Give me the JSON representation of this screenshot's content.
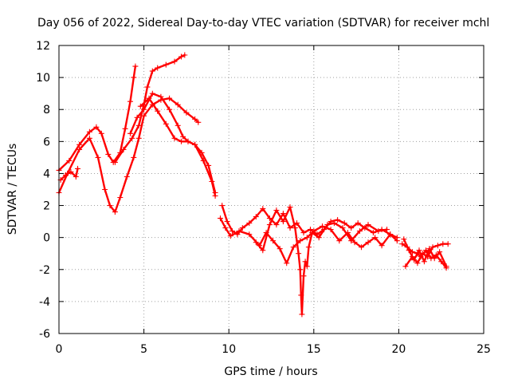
{
  "chart_data": {
    "type": "scatter",
    "title": "Day 056 of 2022, Sidereal Day-to-day VTEC variation (SDTVAR) for receiver mchl",
    "xlabel": "GPS time / hours",
    "ylabel": "SDTVAR / TECUs",
    "xlim": [
      0,
      25
    ],
    "ylim": [
      -6,
      12
    ],
    "xticks": [
      0,
      5,
      10,
      15,
      20,
      25
    ],
    "yticks": [
      -6,
      -4,
      -2,
      0,
      2,
      4,
      6,
      8,
      10,
      12
    ],
    "grid": true,
    "marker": "+",
    "color": "#ff0000",
    "series": [
      {
        "name": "track-1",
        "points": [
          [
            0.0,
            2.8
          ],
          [
            0.5,
            4.0
          ],
          [
            1.2,
            5.5
          ],
          [
            1.8,
            6.2
          ],
          [
            2.3,
            5.0
          ],
          [
            2.7,
            3.0
          ],
          [
            3.0,
            2.0
          ],
          [
            3.3,
            1.6
          ],
          [
            3.6,
            2.5
          ],
          [
            4.0,
            3.8
          ],
          [
            4.4,
            5.0
          ],
          [
            4.7,
            6.2
          ],
          [
            5.0,
            7.6
          ],
          [
            5.5,
            8.3
          ],
          [
            6.0,
            8.6
          ],
          [
            6.5,
            8.7
          ],
          [
            7.0,
            8.3
          ],
          [
            7.5,
            7.8
          ],
          [
            8.0,
            7.4
          ],
          [
            8.2,
            7.2
          ]
        ]
      },
      {
        "name": "track-2",
        "points": [
          [
            0.0,
            4.2
          ],
          [
            0.6,
            4.8
          ],
          [
            1.2,
            5.8
          ],
          [
            1.8,
            6.6
          ],
          [
            2.2,
            6.9
          ],
          [
            2.5,
            6.5
          ],
          [
            2.9,
            5.2
          ],
          [
            3.2,
            4.7
          ],
          [
            3.6,
            5.3
          ],
          [
            3.9,
            6.8
          ],
          [
            4.2,
            8.5
          ],
          [
            4.4,
            10.0
          ],
          [
            4.5,
            10.7
          ]
        ]
      },
      {
        "name": "track-3",
        "points": [
          [
            3.3,
            4.7
          ],
          [
            3.8,
            5.5
          ],
          [
            4.3,
            6.2
          ],
          [
            4.7,
            7.0
          ],
          [
            5.0,
            8.3
          ],
          [
            5.2,
            9.4
          ],
          [
            5.5,
            10.4
          ],
          [
            5.8,
            10.6
          ],
          [
            6.3,
            10.8
          ],
          [
            6.8,
            11.0
          ],
          [
            7.2,
            11.3
          ],
          [
            7.4,
            11.4
          ]
        ]
      },
      {
        "name": "track-4",
        "points": [
          [
            4.2,
            6.5
          ],
          [
            4.6,
            7.5
          ],
          [
            5.0,
            8.0
          ],
          [
            5.5,
            9.0
          ],
          [
            6.0,
            8.8
          ],
          [
            6.5,
            8.0
          ],
          [
            7.0,
            7.0
          ],
          [
            7.3,
            6.3
          ],
          [
            7.6,
            6.0
          ],
          [
            8.0,
            5.8
          ],
          [
            8.4,
            5.3
          ],
          [
            8.8,
            4.5
          ],
          [
            9.2,
            2.8
          ]
        ]
      },
      {
        "name": "track-5",
        "points": [
          [
            4.8,
            8.2
          ],
          [
            5.3,
            8.7
          ],
          [
            5.8,
            7.9
          ],
          [
            6.3,
            7.1
          ],
          [
            6.8,
            6.2
          ],
          [
            7.2,
            6.0
          ],
          [
            7.6,
            6.0
          ],
          [
            8.0,
            5.8
          ],
          [
            8.5,
            4.8
          ],
          [
            9.0,
            3.5
          ],
          [
            9.2,
            2.6
          ]
        ]
      },
      {
        "name": "track-6",
        "points": [
          [
            0.1,
            3.6
          ],
          [
            0.4,
            3.9
          ],
          [
            0.7,
            4.1
          ],
          [
            1.0,
            3.8
          ],
          [
            1.1,
            4.3
          ]
        ]
      },
      {
        "name": "track-7",
        "points": [
          [
            9.6,
            2.0
          ],
          [
            9.9,
            1.0
          ],
          [
            10.2,
            0.4
          ],
          [
            10.5,
            0.2
          ],
          [
            10.8,
            0.6
          ],
          [
            11.2,
            0.9
          ],
          [
            11.6,
            1.3
          ],
          [
            12.0,
            1.8
          ],
          [
            12.4,
            1.2
          ],
          [
            12.8,
            0.8
          ],
          [
            13.2,
            1.5
          ],
          [
            13.6,
            0.6
          ],
          [
            14.0,
            0.9
          ],
          [
            14.4,
            0.3
          ],
          [
            14.8,
            0.5
          ],
          [
            15.2,
            0.2
          ],
          [
            15.6,
            0.5
          ],
          [
            16.0,
            1.0
          ],
          [
            16.4,
            1.1
          ],
          [
            16.8,
            0.9
          ],
          [
            17.2,
            0.6
          ],
          [
            17.6,
            0.9
          ],
          [
            18.0,
            0.6
          ],
          [
            18.5,
            0.3
          ],
          [
            19.0,
            0.5
          ],
          [
            19.5,
            0.2
          ],
          [
            19.9,
            0.0
          ]
        ]
      },
      {
        "name": "track-8",
        "points": [
          [
            9.5,
            1.2
          ],
          [
            9.8,
            0.6
          ],
          [
            10.1,
            0.1
          ],
          [
            10.6,
            0.4
          ],
          [
            11.2,
            0.2
          ],
          [
            11.8,
            -0.5
          ],
          [
            12.2,
            0.3
          ],
          [
            12.6,
            -0.2
          ],
          [
            13.0,
            -0.7
          ],
          [
            13.4,
            -1.6
          ],
          [
            13.8,
            -0.6
          ],
          [
            14.2,
            -0.2
          ],
          [
            14.6,
            0.0
          ],
          [
            15.0,
            0.4
          ],
          [
            15.5,
            0.7
          ],
          [
            16.0,
            0.5
          ],
          [
            16.5,
            -0.2
          ],
          [
            17.0,
            0.3
          ],
          [
            17.4,
            -0.3
          ],
          [
            17.8,
            -0.6
          ],
          [
            18.2,
            -0.3
          ],
          [
            18.6,
            0.0
          ],
          [
            19.0,
            -0.5
          ],
          [
            19.5,
            0.2
          ],
          [
            19.9,
            -0.2
          ]
        ]
      },
      {
        "name": "track-9",
        "points": [
          [
            11.6,
            -0.3
          ],
          [
            12.0,
            -0.8
          ],
          [
            12.4,
            0.8
          ],
          [
            12.8,
            1.7
          ],
          [
            13.2,
            1.0
          ],
          [
            13.6,
            1.9
          ],
          [
            13.9,
            0.6
          ],
          [
            14.1,
            -1.0
          ],
          [
            14.2,
            -2.0
          ],
          [
            14.25,
            -3.6
          ],
          [
            14.3,
            -4.8
          ],
          [
            14.4,
            -2.4
          ],
          [
            14.5,
            -1.5
          ],
          [
            14.6,
            -1.8
          ],
          [
            14.7,
            -0.6
          ],
          [
            14.9,
            0.3
          ],
          [
            15.3,
            0.0
          ],
          [
            15.8,
            0.8
          ],
          [
            16.2,
            0.9
          ],
          [
            16.7,
            0.6
          ],
          [
            17.2,
            -0.2
          ],
          [
            17.7,
            0.4
          ],
          [
            18.2,
            0.8
          ],
          [
            18.8,
            0.4
          ],
          [
            19.3,
            0.5
          ]
        ]
      },
      {
        "name": "track-10",
        "points": [
          [
            20.3,
            -0.1
          ],
          [
            20.6,
            -0.8
          ],
          [
            20.9,
            -1.4
          ],
          [
            21.2,
            -0.8
          ],
          [
            21.5,
            -1.5
          ],
          [
            21.8,
            -0.7
          ],
          [
            22.1,
            -1.3
          ],
          [
            22.4,
            -0.9
          ],
          [
            22.8,
            -1.8
          ]
        ]
      },
      {
        "name": "track-11",
        "points": [
          [
            20.4,
            -1.8
          ],
          [
            20.8,
            -1.2
          ],
          [
            21.1,
            -1.6
          ],
          [
            21.4,
            -1.0
          ],
          [
            21.7,
            -1.2
          ],
          [
            22.0,
            -0.6
          ],
          [
            22.3,
            -0.5
          ],
          [
            22.6,
            -0.4
          ],
          [
            22.9,
            -0.4
          ]
        ]
      },
      {
        "name": "track-12",
        "points": [
          [
            20.2,
            -0.4
          ],
          [
            20.5,
            -0.6
          ],
          [
            20.8,
            -0.9
          ],
          [
            21.1,
            -1.0
          ],
          [
            21.3,
            -1.2
          ],
          [
            21.6,
            -0.8
          ],
          [
            21.9,
            -1.3
          ],
          [
            22.2,
            -1.1
          ],
          [
            22.5,
            -1.5
          ],
          [
            22.8,
            -1.9
          ]
        ]
      }
    ]
  }
}
